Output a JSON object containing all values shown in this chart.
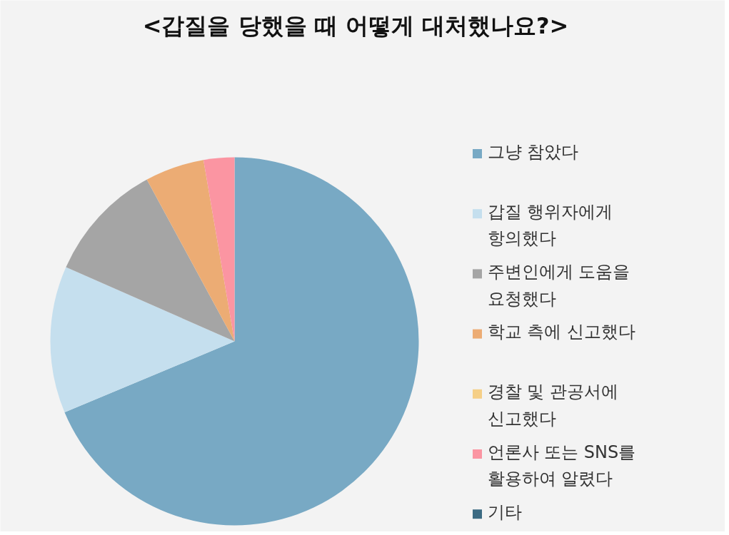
{
  "chart_data": {
    "type": "pie",
    "title": "<갑질을 당했을 때 어떻게 대처했나요?>",
    "categories": [
      "그냥 참았다",
      "갑질 행위자에게 항의했다",
      "주변인에게 도움을 요청했다",
      "학교 측에 신고했다",
      "경찰 및 관공서에 신고했다",
      "언론사 또는 SNS를 활용하여 알렸다",
      "기타"
    ],
    "values": [
      68.7,
      12.9,
      10.5,
      5.2,
      0,
      2.7,
      0
    ],
    "colors": [
      "#78a9c4",
      "#c5dfee",
      "#a5a5a5",
      "#ecac74",
      "#f5cf87",
      "#fb95a2",
      "#3b6a82"
    ],
    "legend": "right"
  }
}
